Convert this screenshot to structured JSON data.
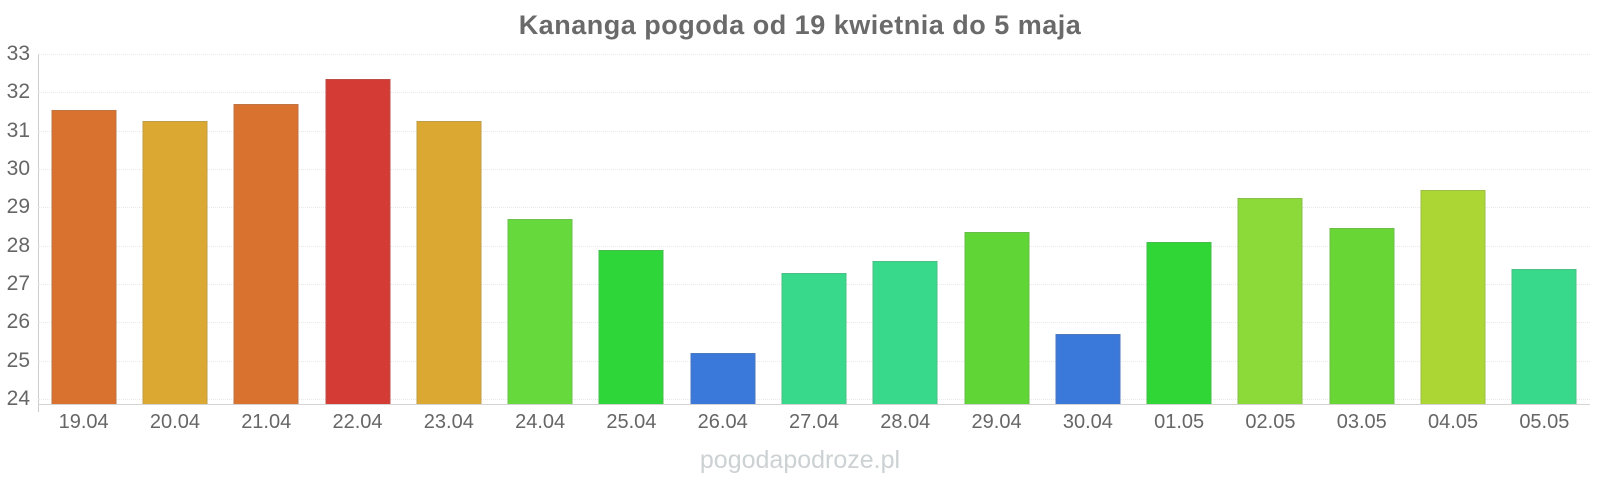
{
  "title": "Kananga pogoda od 19 kwietnia do 5 maja",
  "watermark": "pogodapodroze.pl",
  "colors": {
    "title_text": "#6a6a6a",
    "axis_label_text": "#666666",
    "axis_line": "#cccccc",
    "gridline": "#ebe8e5",
    "watermark_text": "#ccd1d4",
    "background": "#ffffff"
  },
  "chart_data": {
    "type": "bar",
    "title": "Kananga pogoda od 19 kwietnia do 5 maja",
    "xlabel": "",
    "ylabel": "",
    "ylim": [
      24,
      33
    ],
    "y_ticks": [
      33,
      32,
      31,
      30,
      29,
      28,
      27,
      26,
      25,
      24
    ],
    "grid": "horizontal-dotted",
    "legend": "none",
    "categories": [
      "19.04",
      "20.04",
      "21.04",
      "22.04",
      "23.04",
      "24.04",
      "25.04",
      "26.04",
      "27.04",
      "28.04",
      "29.04",
      "30.04",
      "01.05",
      "02.05",
      "03.05",
      "04.05",
      "05.05"
    ],
    "values": [
      31.55,
      31.25,
      31.7,
      32.35,
      31.25,
      28.7,
      27.9,
      25.2,
      27.3,
      27.6,
      28.35,
      25.7,
      28.1,
      29.25,
      28.45,
      29.45,
      27.4
    ],
    "bar_colors": [
      "#D9712F",
      "#DBA832",
      "#D9712F",
      "#D53B35",
      "#DBA832",
      "#66D93C",
      "#2FD63A",
      "#3A78D9",
      "#38D98A",
      "#38D98A",
      "#60D636",
      "#3A78D9",
      "#30D636",
      "#8CD93A",
      "#68D634",
      "#ABD633",
      "#38D98A"
    ]
  }
}
